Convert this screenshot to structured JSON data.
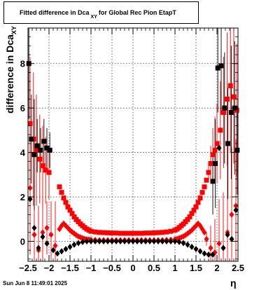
{
  "title": {
    "main": "Fitted difference in Dca",
    "sub": "XY",
    "rest": "for Global Rec Pion EtapT"
  },
  "axes": {
    "ylabel_main": "difference in Dca",
    "ylabel_sub": "XY",
    "xlabel": "η"
  },
  "timestamp": "Sun Jun  8 11:49:01 2025",
  "colors": {
    "black_series": "#000000",
    "red_series": "#ff0000",
    "grid": "#000000",
    "background": "#ffffff"
  },
  "chart_data": {
    "type": "scatter",
    "xlim": [
      -2.5,
      2.5
    ],
    "ylim": [
      -0.9,
      9.6
    ],
    "xticks": [
      -2.5,
      -2,
      -1.5,
      -1,
      -0.5,
      0,
      0.5,
      1,
      1.5,
      2,
      2.5
    ],
    "xtick_labels": [
      "−2.5",
      "−2",
      "−1.5",
      "−1",
      "−0.5",
      "0",
      "0.5",
      "1",
      "1.5",
      "2",
      "2.5"
    ],
    "yticks": [
      0,
      2,
      4,
      6,
      8
    ],
    "ytick_labels": [
      "0",
      "2",
      "4",
      "6",
      "8"
    ],
    "grid": true,
    "series": [
      {
        "color": "black",
        "marker": "square",
        "x": [
          -2.48,
          -2.42,
          -2.35,
          -2.28,
          -2.2,
          -2.12,
          -2.05,
          -1.98,
          1.9,
          1.96,
          2.02,
          2.1,
          2.18,
          2.26,
          2.34,
          2.42,
          2.48
        ],
        "y": [
          8.0,
          4.6,
          3.9,
          4.3,
          4.1,
          4.5,
          4.2,
          4.1,
          2.7,
          3.5,
          7.8,
          7.9,
          6.0,
          4.4,
          5.8,
          6.0,
          4.1
        ],
        "err": [
          2.5,
          2.0,
          2.5,
          1.2,
          1.0,
          1.0,
          0.9,
          0.8,
          1.5,
          2.0,
          2.0,
          2.2,
          2.5,
          2.5,
          3.0,
          3.0,
          2.0
        ]
      },
      {
        "color": "black",
        "marker": "diamond",
        "x": [
          -2.45,
          -2.35,
          -2.25,
          -2.15,
          -2.05,
          -1.9,
          -1.8,
          -1.7,
          -1.6,
          -1.5,
          -1.4,
          -1.3,
          -1.2,
          -1.1,
          -1.0,
          -0.9,
          -0.8,
          -0.7,
          -0.6,
          -0.5,
          -0.4,
          -0.3,
          -0.2,
          -0.1,
          0.0,
          0.1,
          0.2,
          0.3,
          0.4,
          0.5,
          0.6,
          0.7,
          0.8,
          0.9,
          1.0,
          1.1,
          1.2,
          1.3,
          1.4,
          1.5,
          1.6,
          1.7,
          1.8,
          1.9,
          2.05,
          2.15,
          2.25,
          2.35,
          2.45
        ],
        "y": [
          1.9,
          0.6,
          -0.3,
          0.2,
          -0.1,
          -0.4,
          -0.55,
          -0.45,
          -0.35,
          -0.25,
          -0.15,
          -0.08,
          -0.03,
          0.0,
          0.0,
          0.0,
          0.0,
          0.0,
          0.0,
          0.0,
          0.0,
          0.0,
          0.0,
          0.0,
          0.0,
          0.0,
          0.0,
          0.0,
          0.0,
          0.0,
          0.0,
          0.0,
          0.0,
          0.0,
          0.0,
          -0.03,
          -0.08,
          -0.15,
          -0.25,
          -0.35,
          -0.45,
          -0.55,
          -0.6,
          -0.6,
          4.2,
          -0.3,
          0.3,
          0.1,
          1.4
        ]
      },
      {
        "color": "red",
        "marker": "square",
        "x": [
          -2.45,
          -2.37,
          -2.3,
          -2.22,
          -2.15,
          -2.08,
          -2.0,
          -1.75,
          -1.7,
          -1.65,
          -1.6,
          -1.55,
          -1.5,
          -1.45,
          -1.4,
          -1.35,
          -1.3,
          -1.25,
          -1.2,
          -1.15,
          -1.1,
          -1.05,
          -1.0,
          -0.9,
          -0.8,
          -0.7,
          -0.6,
          -0.5,
          -0.4,
          -0.3,
          -0.2,
          -0.1,
          0.0,
          0.1,
          0.2,
          0.3,
          0.4,
          0.5,
          0.6,
          0.7,
          0.8,
          0.9,
          1.0,
          1.05,
          1.1,
          1.15,
          1.2,
          1.25,
          1.3,
          1.35,
          1.4,
          1.45,
          1.5,
          1.55,
          1.6,
          1.65,
          1.7,
          1.75,
          1.8,
          1.85,
          1.9,
          1.95,
          2.0,
          2.08,
          2.16,
          2.24,
          2.32,
          2.4,
          2.47
        ],
        "y": [
          5.3,
          4.6,
          4.1,
          3.7,
          3.4,
          3.2,
          3.1,
          2.45,
          2.2,
          1.95,
          1.75,
          1.55,
          1.4,
          1.25,
          1.1,
          0.98,
          0.88,
          0.78,
          0.7,
          0.62,
          0.55,
          0.5,
          0.45,
          0.42,
          0.4,
          0.39,
          0.38,
          0.37,
          0.37,
          0.36,
          0.36,
          0.36,
          0.36,
          0.36,
          0.36,
          0.37,
          0.37,
          0.38,
          0.39,
          0.4,
          0.42,
          0.45,
          0.5,
          0.55,
          0.62,
          0.7,
          0.78,
          0.88,
          0.98,
          1.1,
          1.25,
          1.4,
          1.55,
          1.75,
          1.95,
          2.2,
          2.45,
          2.75,
          3.1,
          3.5,
          3.9,
          4.1,
          4.4,
          5.0,
          5.8,
          6.4,
          7.0,
          6.5,
          5.9
        ],
        "err": [
          3.0,
          3.0,
          2.5,
          2.0,
          1.8,
          1.5,
          1.2,
          0.05,
          0.05,
          0.05,
          0.05,
          0.05,
          0.05,
          0.05,
          0.05,
          0.05,
          0.05,
          0.05,
          0.05,
          0.05,
          0.05,
          0.05,
          0.05,
          0.05,
          0.05,
          0.05,
          0.05,
          0.05,
          0.05,
          0.05,
          0.05,
          0.05,
          0.05,
          0.05,
          0.05,
          0.05,
          0.05,
          0.05,
          0.05,
          0.05,
          0.05,
          0.05,
          0.05,
          0.05,
          0.05,
          0.05,
          0.05,
          0.05,
          0.05,
          0.05,
          0.05,
          0.05,
          0.05,
          0.05,
          0.05,
          0.05,
          0.05,
          0.1,
          0.3,
          0.8,
          1.2,
          1.5,
          1.8,
          2.2,
          2.5,
          3.0,
          3.0,
          3.0,
          3.0
        ]
      },
      {
        "color": "red",
        "marker": "diamond",
        "x": [
          -2.45,
          -2.35,
          -2.25,
          -2.15,
          -2.05,
          -1.95,
          -1.85,
          -1.75,
          -1.7,
          -1.65,
          -1.6,
          -1.55,
          -1.5,
          -1.45,
          -1.4,
          -1.35,
          -1.3,
          -1.25,
          -1.2,
          -1.15,
          -1.1,
          -1.05,
          -1.0,
          -0.9,
          -0.8,
          -0.7,
          -0.6,
          -0.5,
          -0.4,
          -0.3,
          -0.2,
          -0.1,
          0.0,
          0.1,
          0.2,
          0.3,
          0.4,
          0.5,
          0.6,
          0.7,
          0.8,
          0.9,
          1.0,
          1.05,
          1.1,
          1.15,
          1.2,
          1.25,
          1.3,
          1.35,
          1.4,
          1.45,
          1.5,
          1.55,
          1.6,
          1.65,
          1.7,
          1.75,
          1.85,
          1.95,
          2.05,
          2.15,
          2.25,
          2.35,
          2.45
        ],
        "y": [
          2.4,
          0.3,
          -0.4,
          0.4,
          0.6,
          0.3,
          -0.2,
          0.55,
          0.7,
          0.8,
          0.7,
          0.6,
          0.5,
          0.42,
          0.35,
          0.28,
          0.22,
          0.18,
          0.14,
          0.11,
          0.09,
          0.08,
          0.07,
          0.06,
          0.05,
          0.05,
          0.05,
          0.05,
          0.05,
          0.05,
          0.05,
          0.05,
          0.05,
          0.05,
          0.05,
          0.05,
          0.05,
          0.05,
          0.05,
          0.05,
          0.06,
          0.07,
          0.09,
          0.11,
          0.14,
          0.18,
          0.22,
          0.28,
          0.35,
          0.42,
          0.5,
          0.6,
          0.7,
          0.8,
          0.7,
          0.55,
          0.4,
          0.1,
          -0.3,
          -0.5,
          -0.1,
          -0.3,
          0.4,
          1.2,
          1.6
        ],
        "err": [
          3.0,
          2.5,
          2.0,
          1.5,
          1.2,
          1.5,
          2.0,
          0.05,
          0.05,
          0.05,
          0.05,
          0.05,
          0.05,
          0.05,
          0.05,
          0.05,
          0.05,
          0.05,
          0.05,
          0.05,
          0.05,
          0.05,
          0.05,
          0.05,
          0.05,
          0.05,
          0.05,
          0.05,
          0.05,
          0.05,
          0.05,
          0.05,
          0.05,
          0.05,
          0.05,
          0.05,
          0.05,
          0.05,
          0.05,
          0.05,
          0.05,
          0.05,
          0.05,
          0.05,
          0.05,
          0.05,
          0.05,
          0.05,
          0.05,
          0.05,
          0.05,
          0.05,
          0.05,
          0.05,
          0.05,
          0.05,
          0.05,
          0.3,
          1.0,
          1.5,
          2.0,
          2.5,
          3.0,
          3.0,
          3.0
        ]
      }
    ]
  }
}
